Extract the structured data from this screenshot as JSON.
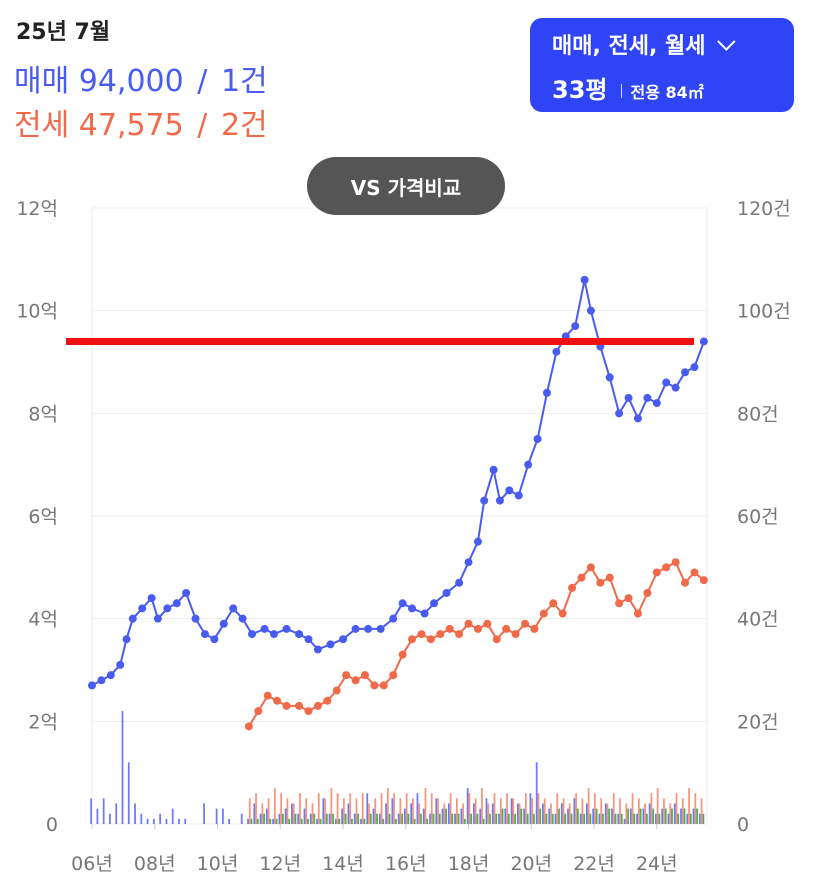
{
  "header": {
    "period": "25년 7월",
    "sale": {
      "label": "매매",
      "price": "94,000",
      "sep": "/",
      "count": "1건"
    },
    "jeonse": {
      "label": "전세",
      "price": "47,575",
      "sep": "/",
      "count": "2건"
    }
  },
  "filter": {
    "types": "매매, 전세, 월세",
    "pyeong": "33평",
    "area": "전용 84㎡"
  },
  "compare_button": "VS 가격비교",
  "colors": {
    "sale": "#4a5cf0",
    "jeonse": "#f06a4a",
    "volume_sale": "#5c6cf5",
    "volume_jeonse": "#f6886c",
    "volume_wolse": "#3ea63e",
    "reference": "#ee1111",
    "grid": "#eeeeee"
  },
  "chart_data": {
    "type": "line",
    "x_range": [
      2006,
      2025.6
    ],
    "y_left": {
      "range": [
        0,
        12
      ],
      "ticks": [
        "0",
        "2억",
        "4억",
        "6억",
        "8억",
        "10억",
        "12억"
      ]
    },
    "y_right": {
      "range": [
        0,
        120
      ],
      "ticks": [
        "0",
        "20건",
        "40건",
        "60건",
        "80건",
        "100건",
        "120건"
      ]
    },
    "x_ticks": [
      "06년",
      "08년",
      "10년",
      "12년",
      "14년",
      "16년",
      "18년",
      "20년",
      "22년",
      "24년"
    ],
    "reference_line": 9.4,
    "series": [
      {
        "name": "매매",
        "axis": "left",
        "points": [
          [
            2006.0,
            2.7
          ],
          [
            2006.3,
            2.8
          ],
          [
            2006.6,
            2.9
          ],
          [
            2006.9,
            3.1
          ],
          [
            2007.1,
            3.6
          ],
          [
            2007.3,
            4.0
          ],
          [
            2007.6,
            4.2
          ],
          [
            2007.9,
            4.4
          ],
          [
            2008.1,
            4.0
          ],
          [
            2008.4,
            4.2
          ],
          [
            2008.7,
            4.3
          ],
          [
            2009.0,
            4.5
          ],
          [
            2009.3,
            4.0
          ],
          [
            2009.6,
            3.7
          ],
          [
            2009.9,
            3.6
          ],
          [
            2010.2,
            3.9
          ],
          [
            2010.5,
            4.2
          ],
          [
            2010.8,
            4.0
          ],
          [
            2011.1,
            3.7
          ],
          [
            2011.5,
            3.8
          ],
          [
            2011.8,
            3.7
          ],
          [
            2012.2,
            3.8
          ],
          [
            2012.6,
            3.7
          ],
          [
            2012.9,
            3.6
          ],
          [
            2013.2,
            3.4
          ],
          [
            2013.6,
            3.5
          ],
          [
            2014.0,
            3.6
          ],
          [
            2014.4,
            3.8
          ],
          [
            2014.8,
            3.8
          ],
          [
            2015.2,
            3.8
          ],
          [
            2015.6,
            4.0
          ],
          [
            2015.9,
            4.3
          ],
          [
            2016.2,
            4.2
          ],
          [
            2016.6,
            4.1
          ],
          [
            2016.9,
            4.3
          ],
          [
            2017.3,
            4.5
          ],
          [
            2017.7,
            4.7
          ],
          [
            2018.0,
            5.1
          ],
          [
            2018.3,
            5.5
          ],
          [
            2018.5,
            6.3
          ],
          [
            2018.8,
            6.9
          ],
          [
            2019.0,
            6.3
          ],
          [
            2019.3,
            6.5
          ],
          [
            2019.6,
            6.4
          ],
          [
            2019.9,
            7.0
          ],
          [
            2020.2,
            7.5
          ],
          [
            2020.5,
            8.4
          ],
          [
            2020.8,
            9.2
          ],
          [
            2021.1,
            9.5
          ],
          [
            2021.4,
            9.7
          ],
          [
            2021.7,
            10.6
          ],
          [
            2021.9,
            10.0
          ],
          [
            2022.2,
            9.3
          ],
          [
            2022.5,
            8.7
          ],
          [
            2022.8,
            8.0
          ],
          [
            2023.1,
            8.3
          ],
          [
            2023.4,
            7.9
          ],
          [
            2023.7,
            8.3
          ],
          [
            2024.0,
            8.2
          ],
          [
            2024.3,
            8.6
          ],
          [
            2024.6,
            8.5
          ],
          [
            2024.9,
            8.8
          ],
          [
            2025.2,
            8.9
          ],
          [
            2025.5,
            9.4
          ]
        ]
      },
      {
        "name": "전세",
        "axis": "left",
        "points": [
          [
            2011.0,
            1.9
          ],
          [
            2011.3,
            2.2
          ],
          [
            2011.6,
            2.5
          ],
          [
            2011.9,
            2.4
          ],
          [
            2012.2,
            2.3
          ],
          [
            2012.6,
            2.3
          ],
          [
            2012.9,
            2.2
          ],
          [
            2013.2,
            2.3
          ],
          [
            2013.5,
            2.4
          ],
          [
            2013.8,
            2.6
          ],
          [
            2014.1,
            2.9
          ],
          [
            2014.4,
            2.8
          ],
          [
            2014.7,
            2.9
          ],
          [
            2015.0,
            2.7
          ],
          [
            2015.3,
            2.7
          ],
          [
            2015.6,
            2.9
          ],
          [
            2015.9,
            3.3
          ],
          [
            2016.2,
            3.6
          ],
          [
            2016.5,
            3.7
          ],
          [
            2016.8,
            3.6
          ],
          [
            2017.1,
            3.7
          ],
          [
            2017.4,
            3.8
          ],
          [
            2017.7,
            3.7
          ],
          [
            2018.0,
            3.9
          ],
          [
            2018.3,
            3.8
          ],
          [
            2018.6,
            3.9
          ],
          [
            2018.9,
            3.6
          ],
          [
            2019.2,
            3.8
          ],
          [
            2019.5,
            3.7
          ],
          [
            2019.8,
            3.9
          ],
          [
            2020.1,
            3.8
          ],
          [
            2020.4,
            4.1
          ],
          [
            2020.7,
            4.3
          ],
          [
            2021.0,
            4.1
          ],
          [
            2021.3,
            4.6
          ],
          [
            2021.6,
            4.8
          ],
          [
            2021.9,
            5.0
          ],
          [
            2022.2,
            4.7
          ],
          [
            2022.5,
            4.8
          ],
          [
            2022.8,
            4.3
          ],
          [
            2023.1,
            4.4
          ],
          [
            2023.4,
            4.1
          ],
          [
            2023.7,
            4.5
          ],
          [
            2024.0,
            4.9
          ],
          [
            2024.3,
            5.0
          ],
          [
            2024.6,
            5.1
          ],
          [
            2024.9,
            4.7
          ],
          [
            2025.2,
            4.9
          ],
          [
            2025.5,
            4.75
          ]
        ]
      }
    ],
    "volume": {
      "axis": "right",
      "bins": [
        2006.0,
        2006.2,
        2006.4,
        2006.6,
        2006.8,
        2007.0,
        2007.2,
        2007.4,
        2007.6,
        2007.8,
        2008.0,
        2008.2,
        2008.4,
        2008.6,
        2008.8,
        2009.0,
        2009.2,
        2009.4,
        2009.6,
        2009.8,
        2010.0,
        2010.2,
        2010.4,
        2010.6,
        2010.8,
        2011.0,
        2011.2,
        2011.4,
        2011.6,
        2011.8,
        2012.0,
        2012.2,
        2012.4,
        2012.6,
        2012.8,
        2013.0,
        2013.2,
        2013.4,
        2013.6,
        2013.8,
        2014.0,
        2014.2,
        2014.4,
        2014.6,
        2014.8,
        2015.0,
        2015.2,
        2015.4,
        2015.6,
        2015.8,
        2016.0,
        2016.2,
        2016.4,
        2016.6,
        2016.8,
        2017.0,
        2017.2,
        2017.4,
        2017.6,
        2017.8,
        2018.0,
        2018.2,
        2018.4,
        2018.6,
        2018.8,
        2019.0,
        2019.2,
        2019.4,
        2019.6,
        2019.8,
        2020.0,
        2020.2,
        2020.4,
        2020.6,
        2020.8,
        2021.0,
        2021.2,
        2021.4,
        2021.6,
        2021.8,
        2022.0,
        2022.2,
        2022.4,
        2022.6,
        2022.8,
        2023.0,
        2023.2,
        2023.4,
        2023.6,
        2023.8,
        2024.0,
        2024.2,
        2024.4,
        2024.6,
        2024.8,
        2025.0,
        2025.2,
        2025.4
      ],
      "sale": [
        5,
        3,
        5,
        2,
        4,
        22,
        12,
        4,
        2,
        1,
        1,
        2,
        1,
        3,
        1,
        1,
        0,
        0,
        4,
        0,
        3,
        3,
        1,
        0,
        2,
        1,
        4,
        2,
        3,
        1,
        2,
        3,
        4,
        2,
        3,
        2,
        1,
        5,
        2,
        1,
        3,
        4,
        2,
        1,
        6,
        3,
        2,
        4,
        5,
        2,
        3,
        4,
        6,
        3,
        2,
        5,
        3,
        4,
        2,
        3,
        7,
        4,
        3,
        5,
        4,
        2,
        3,
        5,
        4,
        3,
        6,
        12,
        4,
        3,
        2,
        4,
        3,
        5,
        2,
        4,
        3,
        2,
        4,
        3,
        2,
        1,
        3,
        2,
        3,
        4,
        2,
        3,
        2,
        4,
        3,
        2,
        3,
        2
      ],
      "jeonse": [
        0,
        0,
        0,
        0,
        0,
        0,
        0,
        0,
        0,
        0,
        0,
        0,
        0,
        0,
        0,
        0,
        0,
        0,
        0,
        0,
        0,
        0,
        0,
        0,
        0,
        5,
        6,
        4,
        5,
        7,
        6,
        5,
        4,
        6,
        5,
        4,
        6,
        5,
        7,
        6,
        5,
        6,
        5,
        6,
        4,
        5,
        6,
        7,
        6,
        5,
        6,
        5,
        4,
        7,
        6,
        5,
        4,
        6,
        5,
        4,
        6,
        5,
        7,
        4,
        6,
        5,
        6,
        5,
        4,
        6,
        5,
        6,
        5,
        4,
        6,
        5,
        4,
        6,
        5,
        7,
        6,
        5,
        4,
        6,
        5,
        4,
        6,
        5,
        4,
        6,
        7,
        5,
        4,
        6,
        5,
        7,
        6,
        5
      ],
      "wolse": [
        0,
        0,
        0,
        0,
        0,
        0,
        0,
        0,
        0,
        0,
        0,
        0,
        0,
        0,
        0,
        0,
        0,
        0,
        0,
        0,
        0,
        0,
        0,
        0,
        0,
        1,
        1,
        2,
        1,
        1,
        2,
        1,
        2,
        1,
        1,
        2,
        1,
        2,
        2,
        1,
        2,
        1,
        2,
        1,
        2,
        2,
        1,
        2,
        1,
        2,
        2,
        1,
        2,
        1,
        2,
        2,
        3,
        2,
        2,
        1,
        2,
        2,
        1,
        2,
        2,
        3,
        2,
        2,
        3,
        2,
        2,
        3,
        2,
        2,
        3,
        2,
        2,
        3,
        2,
        2,
        3,
        2,
        3,
        2,
        2,
        3,
        2,
        3,
        2,
        3,
        2,
        3,
        3,
        2,
        3,
        2,
        3,
        2
      ]
    }
  }
}
